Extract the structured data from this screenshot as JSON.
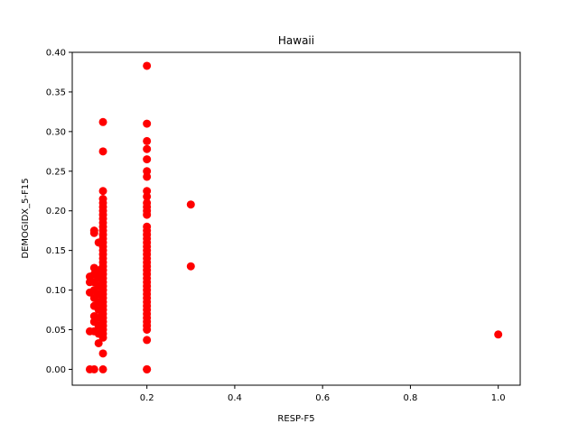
{
  "chart_data": {
    "type": "scatter",
    "title": "Hawaii",
    "xlabel": "RESP-F5",
    "ylabel": "DEMOGIDX_5-F15",
    "xlim": [
      0.03,
      1.05
    ],
    "ylim": [
      -0.02,
      0.4
    ],
    "xticks": [
      0.2,
      0.4,
      0.6,
      0.8,
      1.0
    ],
    "xtick_labels": [
      "0.2",
      "0.4",
      "0.6",
      "0.8",
      "1.0"
    ],
    "yticks": [
      0.0,
      0.05,
      0.1,
      0.15,
      0.2,
      0.25,
      0.3,
      0.35,
      0.4
    ],
    "ytick_labels": [
      "0.00",
      "0.05",
      "0.10",
      "0.15",
      "0.20",
      "0.25",
      "0.30",
      "0.35",
      "0.40"
    ],
    "grid": false,
    "marker_color": "#ff0000",
    "series": [
      {
        "points": [
          [
            0.07,
            0.0
          ],
          [
            0.08,
            0.0
          ],
          [
            0.1,
            0.0
          ],
          [
            0.2,
            0.0
          ],
          [
            0.2,
            0.0
          ],
          [
            0.07,
            0.048
          ],
          [
            0.07,
            0.097
          ],
          [
            0.07,
            0.11
          ],
          [
            0.07,
            0.117
          ],
          [
            0.08,
            0.048
          ],
          [
            0.08,
            0.06
          ],
          [
            0.08,
            0.067
          ],
          [
            0.08,
            0.08
          ],
          [
            0.08,
            0.09
          ],
          [
            0.08,
            0.1
          ],
          [
            0.08,
            0.11
          ],
          [
            0.08,
            0.12
          ],
          [
            0.08,
            0.128
          ],
          [
            0.08,
            0.172
          ],
          [
            0.08,
            0.175
          ],
          [
            0.09,
            0.033
          ],
          [
            0.09,
            0.045
          ],
          [
            0.09,
            0.055
          ],
          [
            0.09,
            0.065
          ],
          [
            0.09,
            0.075
          ],
          [
            0.09,
            0.085
          ],
          [
            0.09,
            0.095
          ],
          [
            0.09,
            0.105
          ],
          [
            0.09,
            0.115
          ],
          [
            0.09,
            0.125
          ],
          [
            0.09,
            0.16
          ],
          [
            0.1,
            0.02
          ],
          [
            0.1,
            0.04
          ],
          [
            0.1,
            0.045
          ],
          [
            0.1,
            0.05
          ],
          [
            0.1,
            0.055
          ],
          [
            0.1,
            0.06
          ],
          [
            0.1,
            0.065
          ],
          [
            0.1,
            0.07
          ],
          [
            0.1,
            0.075
          ],
          [
            0.1,
            0.08
          ],
          [
            0.1,
            0.085
          ],
          [
            0.1,
            0.09
          ],
          [
            0.1,
            0.095
          ],
          [
            0.1,
            0.1
          ],
          [
            0.1,
            0.105
          ],
          [
            0.1,
            0.11
          ],
          [
            0.1,
            0.115
          ],
          [
            0.1,
            0.12
          ],
          [
            0.1,
            0.125
          ],
          [
            0.1,
            0.13
          ],
          [
            0.1,
            0.135
          ],
          [
            0.1,
            0.14
          ],
          [
            0.1,
            0.145
          ],
          [
            0.1,
            0.15
          ],
          [
            0.1,
            0.155
          ],
          [
            0.1,
            0.16
          ],
          [
            0.1,
            0.165
          ],
          [
            0.1,
            0.17
          ],
          [
            0.1,
            0.175
          ],
          [
            0.1,
            0.18
          ],
          [
            0.1,
            0.185
          ],
          [
            0.1,
            0.19
          ],
          [
            0.1,
            0.195
          ],
          [
            0.1,
            0.2
          ],
          [
            0.1,
            0.205
          ],
          [
            0.1,
            0.21
          ],
          [
            0.1,
            0.215
          ],
          [
            0.1,
            0.225
          ],
          [
            0.1,
            0.275
          ],
          [
            0.1,
            0.312
          ],
          [
            0.2,
            0.037
          ],
          [
            0.2,
            0.05
          ],
          [
            0.2,
            0.055
          ],
          [
            0.2,
            0.06
          ],
          [
            0.2,
            0.065
          ],
          [
            0.2,
            0.07
          ],
          [
            0.2,
            0.075
          ],
          [
            0.2,
            0.08
          ],
          [
            0.2,
            0.085
          ],
          [
            0.2,
            0.09
          ],
          [
            0.2,
            0.095
          ],
          [
            0.2,
            0.1
          ],
          [
            0.2,
            0.105
          ],
          [
            0.2,
            0.11
          ],
          [
            0.2,
            0.115
          ],
          [
            0.2,
            0.12
          ],
          [
            0.2,
            0.125
          ],
          [
            0.2,
            0.13
          ],
          [
            0.2,
            0.135
          ],
          [
            0.2,
            0.14
          ],
          [
            0.2,
            0.145
          ],
          [
            0.2,
            0.15
          ],
          [
            0.2,
            0.155
          ],
          [
            0.2,
            0.16
          ],
          [
            0.2,
            0.165
          ],
          [
            0.2,
            0.17
          ],
          [
            0.2,
            0.175
          ],
          [
            0.2,
            0.18
          ],
          [
            0.2,
            0.195
          ],
          [
            0.2,
            0.2
          ],
          [
            0.2,
            0.205
          ],
          [
            0.2,
            0.21
          ],
          [
            0.2,
            0.218
          ],
          [
            0.2,
            0.225
          ],
          [
            0.2,
            0.243
          ],
          [
            0.2,
            0.25
          ],
          [
            0.2,
            0.265
          ],
          [
            0.2,
            0.278
          ],
          [
            0.2,
            0.288
          ],
          [
            0.2,
            0.31
          ],
          [
            0.2,
            0.383
          ],
          [
            0.3,
            0.13
          ],
          [
            0.3,
            0.208
          ],
          [
            1.0,
            0.044
          ]
        ]
      }
    ]
  }
}
